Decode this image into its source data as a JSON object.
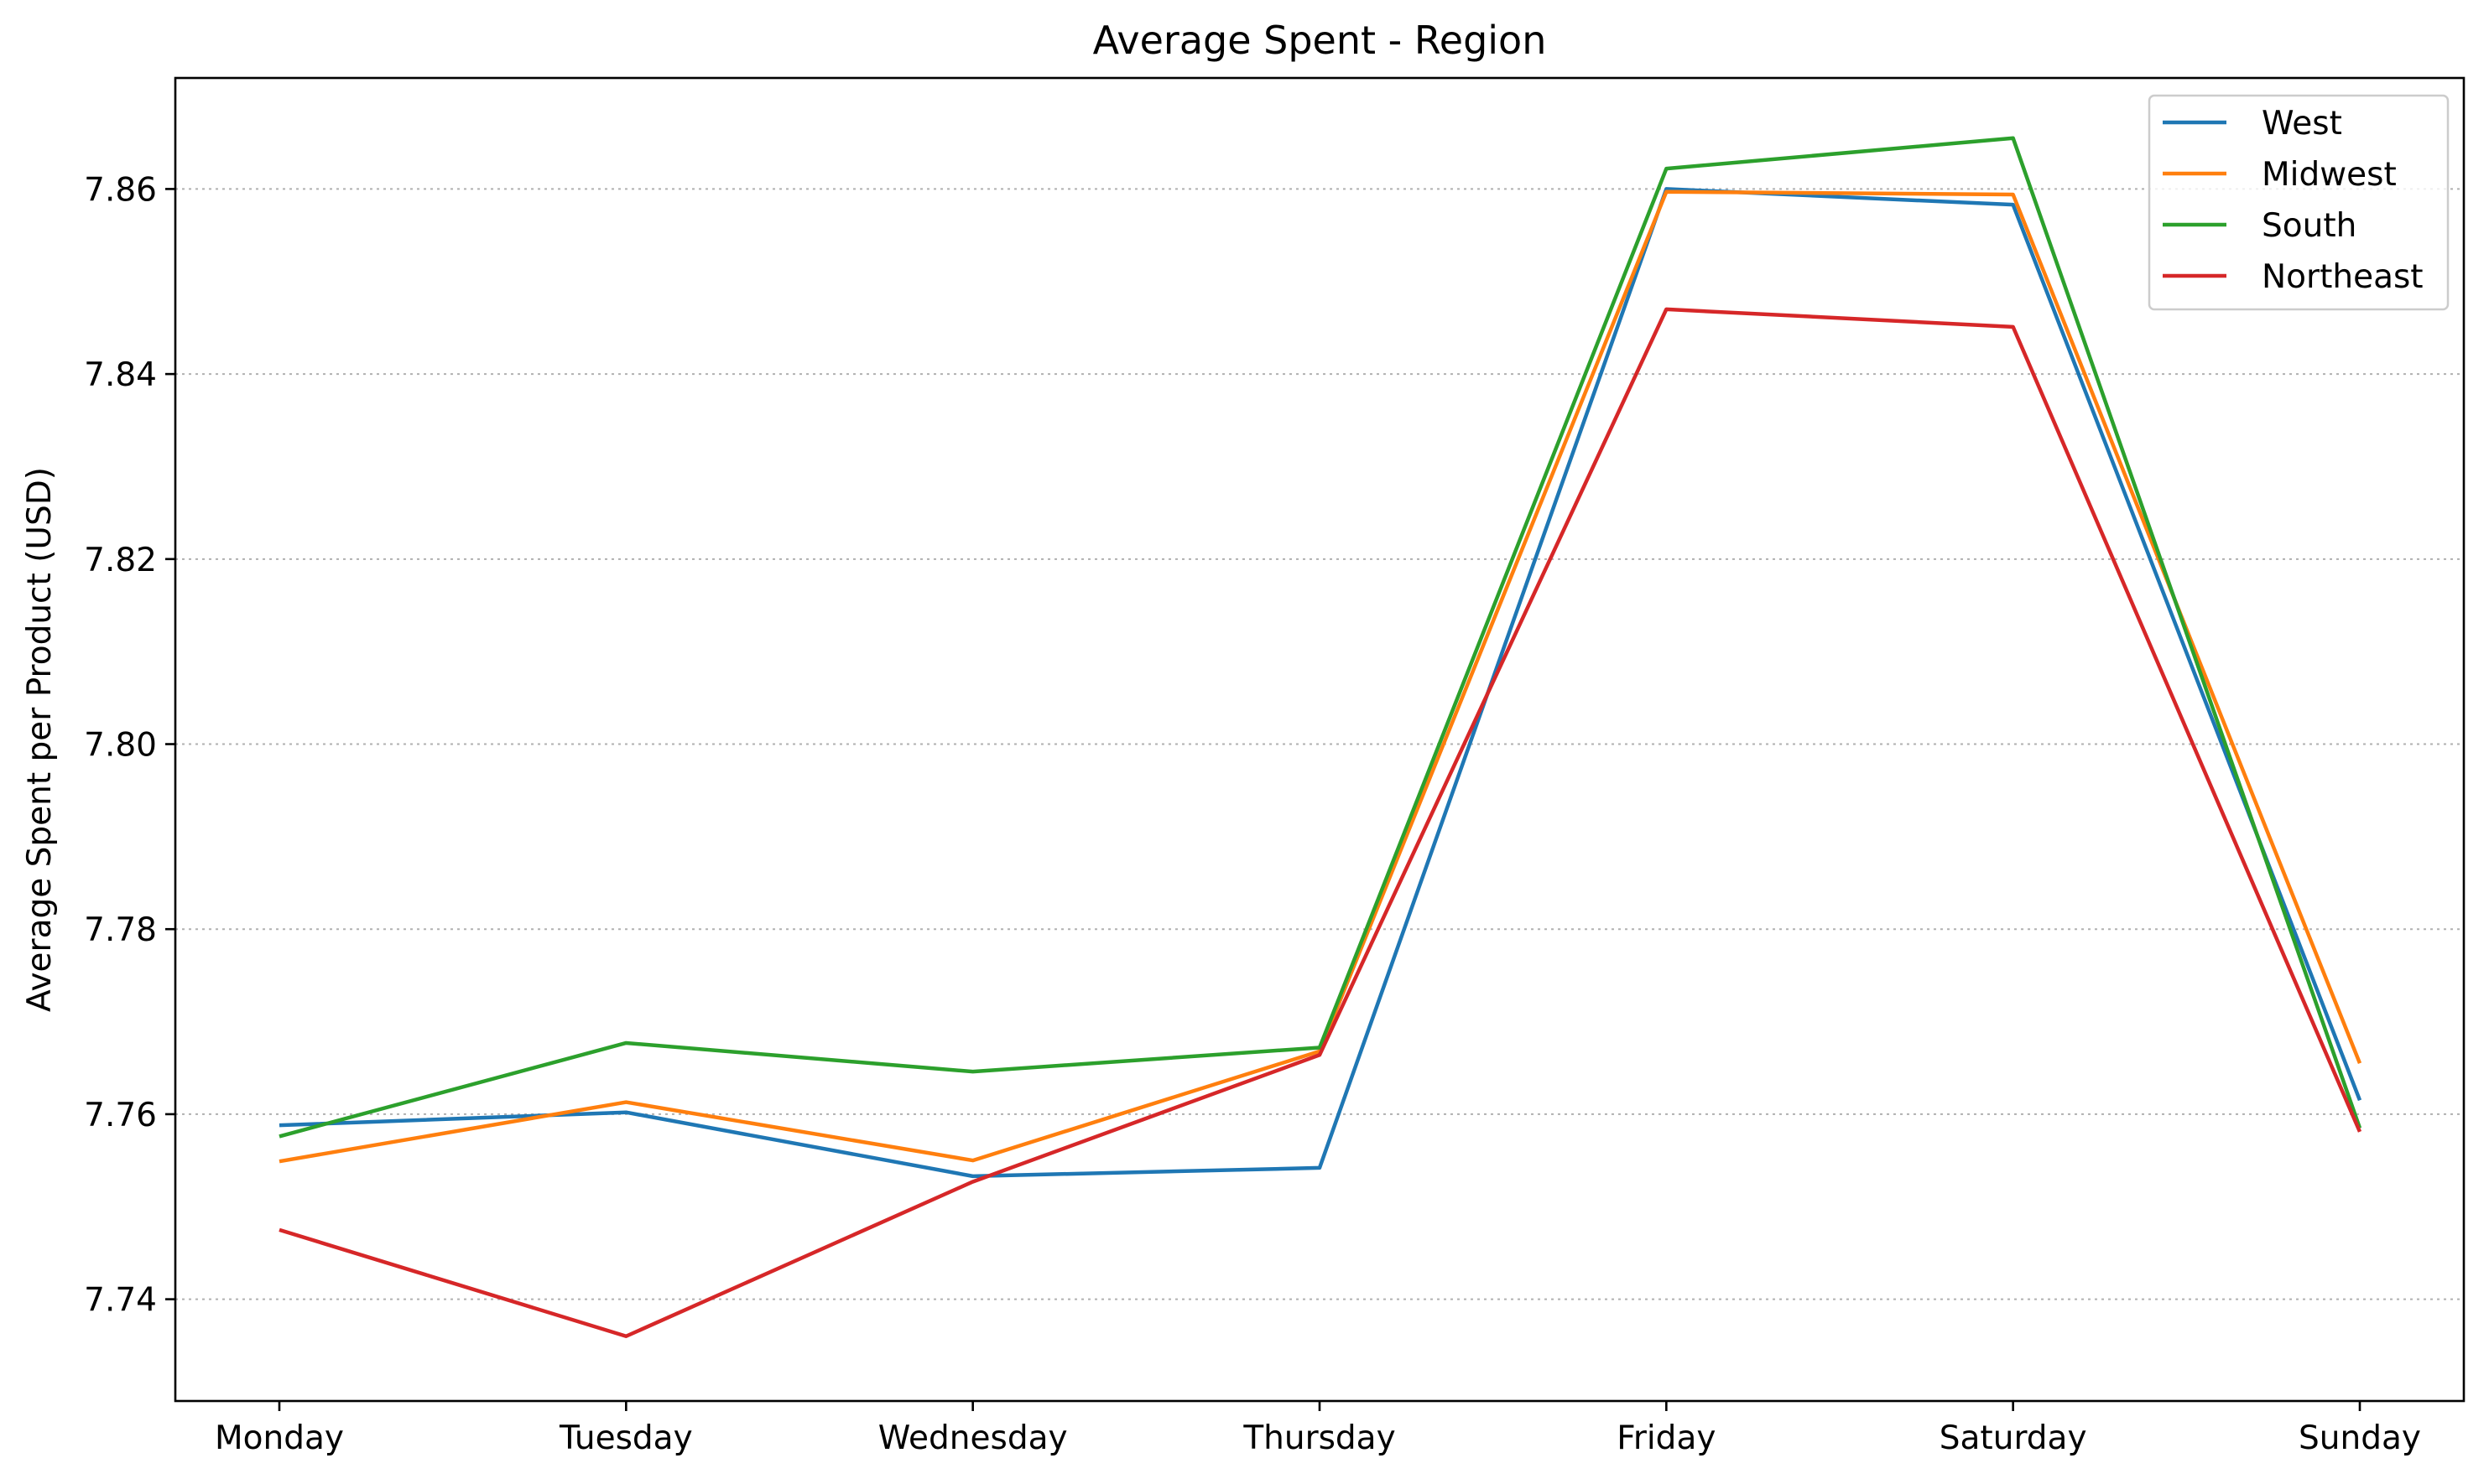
{
  "chart_data": {
    "type": "line",
    "title": "Average Spent - Region",
    "xlabel": "",
    "ylabel": "Average Spent per Product (USD)",
    "categories": [
      "Monday",
      "Tuesday",
      "Wednesday",
      "Thursday",
      "Friday",
      "Saturday",
      "Sunday"
    ],
    "ylim": [
      7.729,
      7.872
    ],
    "yticks": [
      7.74,
      7.76,
      7.78,
      7.8,
      7.82,
      7.84,
      7.86
    ],
    "ytick_labels": [
      "7.74",
      "7.76",
      "7.78",
      "7.80",
      "7.82",
      "7.84",
      "7.86"
    ],
    "grid": "y-dotted",
    "legend_position": "top-right",
    "series": [
      {
        "name": "West",
        "color": "#1f77b4",
        "values": [
          7.7588,
          7.7602,
          7.7533,
          7.7542,
          7.86,
          7.8583,
          7.7615
        ]
      },
      {
        "name": "Midwest",
        "color": "#ff7f0e",
        "values": [
          7.7549,
          7.7613,
          7.755,
          7.7668,
          7.8597,
          7.8594,
          7.7655
        ]
      },
      {
        "name": "South",
        "color": "#2ca02c",
        "values": [
          7.7576,
          7.7677,
          7.7646,
          7.7672,
          7.8622,
          7.8655,
          7.7585
        ]
      },
      {
        "name": "Northeast",
        "color": "#d62728",
        "values": [
          7.7475,
          7.736,
          7.7527,
          7.7664,
          7.847,
          7.8451,
          7.7581
        ]
      }
    ]
  }
}
